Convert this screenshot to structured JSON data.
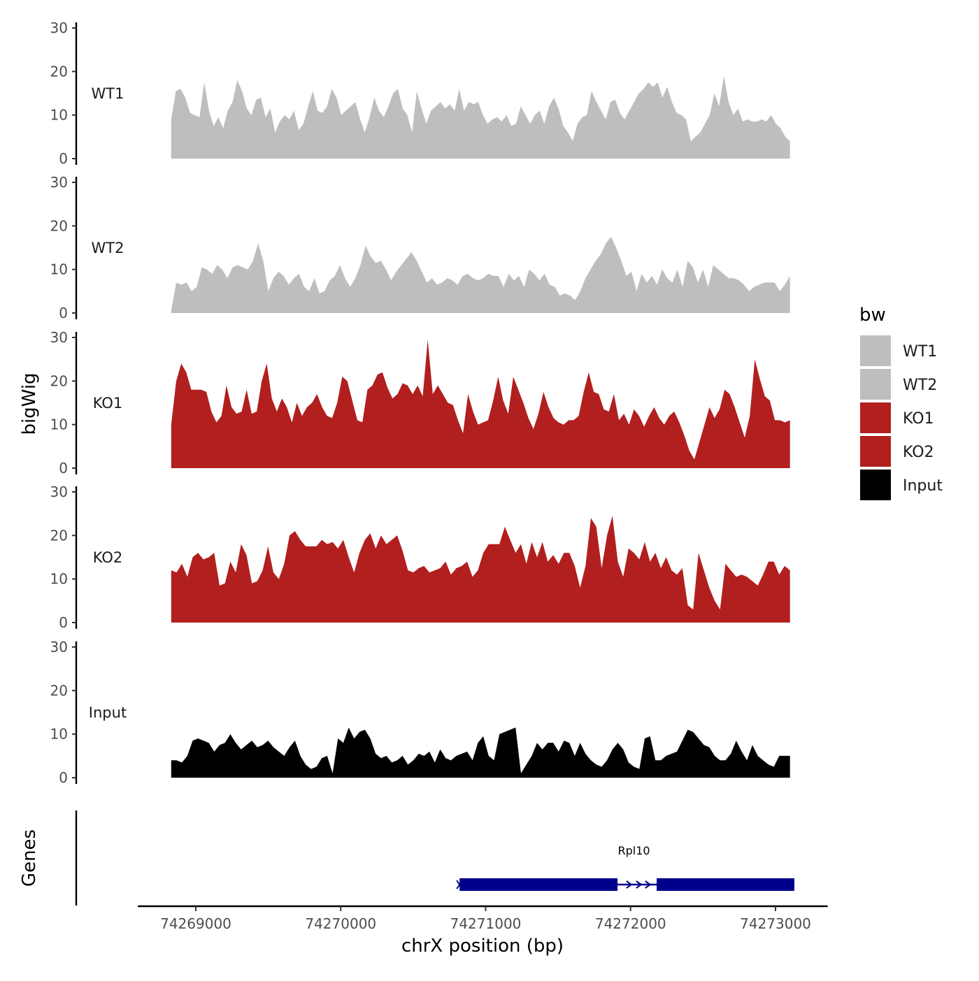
{
  "chart_data": {
    "type": "area",
    "title": "",
    "chromosome": "chrX",
    "xlabel": "chrX position (bp)",
    "ylabel": "bigWig",
    "genes_panel_label": "Genes",
    "xlim": [
      74268600,
      74273360
    ],
    "x_ticks": [
      74269000,
      74270000,
      74271000,
      74272000,
      74273000
    ],
    "ylim": [
      0,
      30
    ],
    "y_ticks": [
      0,
      10,
      20,
      30
    ],
    "x_start": 74268830,
    "x_end": 74273100,
    "legend": {
      "title": "bw",
      "entries": [
        {
          "label": "WT1",
          "color": "#bebebe"
        },
        {
          "label": "WT2",
          "color": "#bebebe"
        },
        {
          "label": "KO1",
          "color": "#b21f1f"
        },
        {
          "label": "KO2",
          "color": "#b21f1f"
        },
        {
          "label": "Input",
          "color": "#000000"
        }
      ]
    },
    "series": [
      {
        "name": "WT1",
        "color": "#bebebe",
        "values": [
          9,
          15.5,
          16,
          14,
          10.5,
          10,
          9.5,
          17.5,
          11,
          7.5,
          9.5,
          7,
          11,
          13,
          18,
          15.5,
          11.5,
          10,
          13.5,
          14,
          9.5,
          11.5,
          6,
          8.5,
          10,
          9,
          11,
          6.5,
          8,
          12,
          15.5,
          11,
          10.5,
          12,
          16,
          14,
          10,
          11,
          12,
          13,
          9,
          6,
          9.5,
          14,
          11,
          9.5,
          12,
          15,
          16,
          11.5,
          10,
          6,
          15.5,
          11.5,
          8,
          11,
          12,
          13,
          11.5,
          12.5,
          11,
          16,
          11,
          13,
          12.5,
          13,
          10,
          8,
          9,
          9.5,
          8.5,
          10,
          7.5,
          8,
          12,
          10,
          8,
          10,
          11,
          8,
          12,
          14,
          11.5,
          7.5,
          6,
          4,
          8,
          9.5,
          10,
          15.5,
          13,
          11,
          9,
          13,
          13.5,
          10.5,
          9,
          11,
          13,
          15,
          16,
          17.5,
          16.5,
          17.5,
          14,
          16.5,
          13,
          10.5,
          10,
          9,
          4,
          5,
          6,
          8,
          10,
          15,
          12,
          19,
          13,
          10,
          11.5,
          8.5,
          9,
          8.5,
          8.5,
          9,
          8.5,
          10,
          8,
          7,
          5,
          4
        ]
      },
      {
        "name": "WT2",
        "color": "#bebebe",
        "values": [
          0.5,
          7,
          6.5,
          7,
          5,
          6,
          10.5,
          10,
          9,
          11,
          10,
          8,
          10.5,
          11,
          10.5,
          10,
          12,
          16,
          12,
          5,
          8,
          9.5,
          8.5,
          6.5,
          8,
          9,
          6,
          5,
          8,
          4.5,
          5,
          7.5,
          8.5,
          11,
          8,
          6,
          8,
          11,
          15.5,
          13,
          11.5,
          12,
          10,
          7.5,
          9.5,
          11,
          12.5,
          14,
          12,
          9.5,
          7,
          8,
          6.5,
          7,
          8,
          7.5,
          6.5,
          8.5,
          9,
          8,
          7.5,
          8,
          9,
          8.5,
          8.5,
          6,
          9,
          7.5,
          8.5,
          6,
          10,
          9,
          7.5,
          9,
          6.5,
          6,
          4,
          4.5,
          4,
          3,
          5,
          8,
          10,
          12,
          13.5,
          16,
          17.5,
          15,
          12,
          8.5,
          9.5,
          5,
          9,
          7,
          8.5,
          6.5,
          10,
          8,
          7,
          10,
          6,
          12,
          10.5,
          7,
          10,
          6,
          11,
          10,
          9,
          8,
          8,
          7.5,
          6.5,
          5,
          6,
          6.5,
          7,
          7,
          7,
          5,
          6.5,
          8.5
        ]
      },
      {
        "name": "KO1",
        "color": "#b21f1f",
        "values": [
          10,
          20,
          24,
          22,
          18,
          18,
          18,
          17.5,
          13,
          10.5,
          12,
          19,
          14,
          12.5,
          13,
          18,
          12.5,
          13,
          20,
          24,
          16,
          13,
          16,
          14,
          10.5,
          15,
          12,
          14,
          15,
          17,
          14,
          12,
          11.5,
          15,
          21,
          20,
          15.5,
          11,
          10.5,
          18,
          19,
          21.5,
          22,
          18.5,
          16,
          17,
          19.5,
          19,
          17,
          19,
          16.5,
          29.5,
          17,
          19,
          17,
          15,
          14.5,
          11,
          8,
          17,
          13,
          10,
          10.5,
          11,
          15.5,
          21,
          15.5,
          12.5,
          21,
          18,
          15,
          11.5,
          9,
          12.5,
          17.5,
          14,
          11.5,
          10.5,
          10,
          11,
          11,
          12,
          17.5,
          22,
          17.5,
          17,
          13.5,
          13,
          17,
          11,
          12.5,
          10,
          13.5,
          12,
          9.5,
          12,
          14,
          11.5,
          10,
          12,
          13,
          10.5,
          7.5,
          4,
          2,
          6,
          10,
          14,
          11.5,
          13.5,
          18,
          17,
          14,
          10.5,
          7,
          12,
          25,
          20.5,
          16.5,
          15.5,
          11,
          11,
          10.5,
          11
        ]
      },
      {
        "name": "KO2",
        "color": "#b21f1f",
        "values": [
          12,
          11.5,
          13.5,
          10.5,
          15,
          16,
          14.5,
          15,
          16,
          8.5,
          9,
          14,
          11.5,
          18,
          15.5,
          9,
          9.5,
          12,
          17.5,
          11.5,
          10,
          13.5,
          20,
          21,
          19,
          17.5,
          17.5,
          17.5,
          19,
          18,
          18.5,
          17,
          19,
          15,
          11.5,
          16,
          19,
          20.5,
          17,
          20,
          18,
          19,
          20,
          16.5,
          12,
          11.5,
          12.5,
          13,
          11.5,
          12,
          12.5,
          14,
          11,
          12.5,
          13,
          14,
          10.5,
          12,
          16,
          18,
          18,
          18,
          22,
          19,
          16,
          18,
          13.5,
          18.5,
          15,
          18.5,
          14,
          15.5,
          13.5,
          16,
          16,
          13,
          8,
          13,
          24,
          22,
          12.5,
          20,
          24.5,
          14,
          10.5,
          17,
          16,
          14.5,
          18.5,
          14,
          16,
          12.5,
          15,
          12,
          11,
          12.5,
          4,
          3,
          16,
          12,
          8,
          5,
          3,
          13.5,
          12,
          10.5,
          11,
          10.5,
          9.5,
          8.5,
          11,
          14,
          14,
          11,
          13,
          12
        ]
      },
      {
        "name": "Input",
        "color": "#000000",
        "values": [
          4,
          4,
          3.5,
          5,
          8.5,
          9,
          8.5,
          8,
          6,
          7.5,
          8,
          10,
          8,
          6.5,
          7.5,
          8.5,
          7,
          7.5,
          8.5,
          7,
          6,
          5,
          7,
          8.5,
          5,
          3,
          2,
          2.5,
          4.5,
          5,
          1,
          9,
          8,
          11.5,
          9,
          10.5,
          11,
          9,
          5.5,
          4.5,
          5,
          3.5,
          4,
          5,
          3,
          4,
          5.5,
          5,
          6,
          3.5,
          6.5,
          4.5,
          4,
          5,
          5.5,
          6,
          4,
          8,
          9.5,
          5,
          4,
          10,
          10.5,
          11,
          11.5,
          1,
          3,
          5,
          8,
          6.5,
          8,
          8,
          6,
          8.5,
          8,
          5,
          8,
          5.5,
          4,
          3,
          2.5,
          4,
          6.5,
          8,
          6.5,
          3.5,
          2.5,
          2,
          9,
          9.5,
          4,
          4,
          5,
          5.5,
          6,
          8.5,
          11,
          10.5,
          9,
          7.5,
          7,
          5,
          4,
          4,
          5.5,
          8.5,
          6,
          4,
          7.5,
          5,
          4,
          3,
          2.5,
          5,
          5,
          5
        ]
      }
    ],
    "gene": {
      "name": "Rpl10",
      "strand": "+",
      "color": "#00008b",
      "start": 74270820,
      "end": 74273130,
      "exons": [
        [
          74270820,
          74271910
        ],
        [
          74272180,
          74273130
        ]
      ]
    }
  }
}
